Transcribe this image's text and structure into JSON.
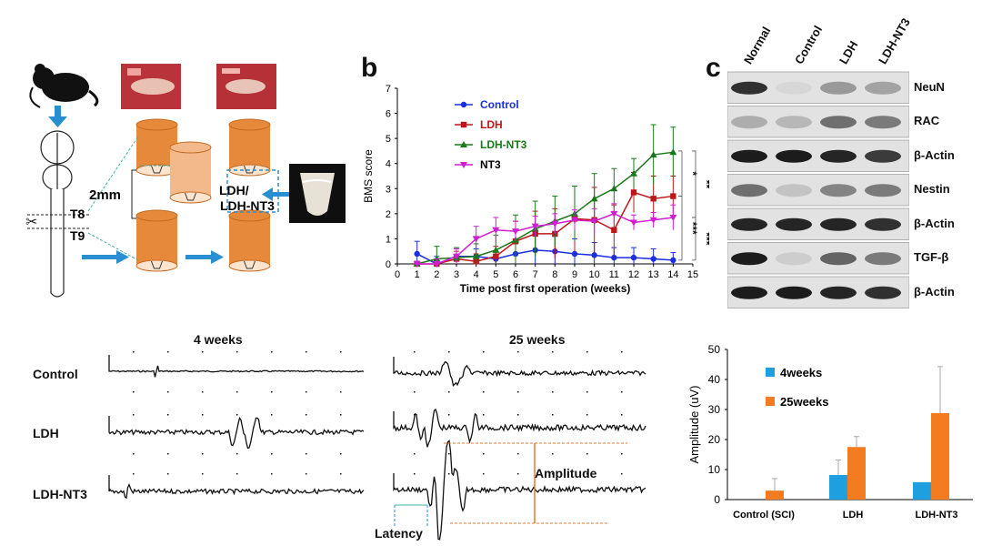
{
  "panel_a": {
    "spine_labels": [
      "T8",
      "T9"
    ],
    "gap_label": "2mm",
    "implant_label_line1": "LDH/",
    "implant_label_line2": "LDH-NT3"
  },
  "panel_b": {
    "letter": "b",
    "significance": [
      "*",
      "**",
      "***",
      "***"
    ]
  },
  "panel_c": {
    "letter": "c",
    "lanes": [
      "Normal",
      "Control",
      "LDH",
      "LDH-NT3"
    ],
    "bands": [
      "NeuN",
      "RAC",
      "β-Actin",
      "Nestin",
      "β-Actin",
      "TGF-β",
      "β-Actin"
    ]
  },
  "panel_d": {
    "col1_title": "4 weeks",
    "col2_title": "25 weeks",
    "rows": [
      "Control",
      "LDH",
      "LDH-NT3"
    ],
    "amplitude_label": "Amplitude",
    "latency_label": "Latency"
  },
  "colors": {
    "control": "#1a2fe0",
    "ldh": "#c0161a",
    "ldh_nt3": "#1a7a1a",
    "nt3": "#d01fd0",
    "bar_4w": "#1ea0e0",
    "bar_25w": "#f47c20",
    "tissue_orange": "#e6893a"
  },
  "chart_data": [
    {
      "type": "line",
      "xlabel": "Time post first operation (weeks)",
      "ylabel": "BMS score",
      "xlim": [
        0,
        15
      ],
      "ylim": [
        0,
        7
      ],
      "xticks": [
        0,
        1,
        2,
        3,
        4,
        5,
        6,
        7,
        8,
        9,
        10,
        11,
        12,
        13,
        14,
        15
      ],
      "yticks": [
        0,
        1,
        2,
        3,
        4,
        5,
        6,
        7
      ],
      "x": [
        1,
        2,
        3,
        4,
        5,
        6,
        7,
        8,
        9,
        10,
        11,
        12,
        13,
        14
      ],
      "legend_position": "top-left",
      "series": [
        {
          "name": "Control",
          "color": "#1a2fe0",
          "marker": "circle",
          "values": [
            0.4,
            0,
            0.3,
            0.3,
            0.2,
            0.4,
            0.55,
            0.5,
            0.4,
            0.35,
            0.25,
            0.25,
            0.2,
            0.15
          ],
          "err": [
            0.5,
            0.3,
            0.3,
            0.3,
            0.3,
            0.4,
            0.6,
            0.6,
            0.6,
            0.5,
            0.4,
            0.4,
            0.4,
            0.3
          ]
        },
        {
          "name": "LDH",
          "color": "#c0161a",
          "marker": "square",
          "values": [
            0,
            0,
            0.2,
            0.1,
            0.3,
            0.9,
            1.2,
            1.2,
            1.8,
            1.75,
            1.35,
            2.85,
            2.6,
            2.7
          ],
          "err": [
            0.1,
            0.2,
            0.3,
            0.3,
            0.4,
            0.8,
            0.9,
            1.0,
            1.3,
            1.3,
            1.0,
            0.8,
            0.9,
            0.8
          ]
        },
        {
          "name": "LDH-NT3",
          "color": "#1a7a1a",
          "marker": "triangle-up",
          "values": [
            0,
            0.2,
            0.25,
            0.3,
            0.55,
            0.95,
            1.4,
            1.7,
            2.0,
            2.6,
            3.0,
            3.6,
            4.35,
            4.45
          ],
          "err": [
            0.1,
            0.5,
            0.4,
            0.5,
            0.6,
            1.0,
            1.1,
            1.0,
            1.1,
            1.0,
            0.8,
            0.6,
            1.2,
            1.0
          ]
        },
        {
          "name": "NT3",
          "color": "#d01fd0",
          "marker": "triangle-down",
          "values": [
            0,
            0,
            0.3,
            1.0,
            1.35,
            1.3,
            1.5,
            1.6,
            1.75,
            1.7,
            2.0,
            1.65,
            1.75,
            1.85
          ],
          "err": [
            0.1,
            0.2,
            0.3,
            0.5,
            0.5,
            0.4,
            0.4,
            0.4,
            0.4,
            0.5,
            0.4,
            0.3,
            0.3,
            0.5
          ]
        }
      ]
    },
    {
      "type": "bar",
      "ylabel": "Amplitude (uV)",
      "ylim": [
        0,
        50
      ],
      "yticks": [
        0,
        10,
        20,
        30,
        40,
        50
      ],
      "categories": [
        "Control  (SCI)",
        "LDH",
        "LDH-NT3"
      ],
      "legend_position": "top-left",
      "series": [
        {
          "name": "4weeks",
          "color": "#1ea0e0",
          "values": [
            0,
            8.2,
            5.8
          ],
          "err": [
            0,
            5,
            0
          ]
        },
        {
          "name": "25weeks",
          "color": "#f47c20",
          "values": [
            3,
            17.5,
            28.8
          ],
          "err": [
            4,
            3.5,
            15.5
          ]
        }
      ]
    }
  ]
}
